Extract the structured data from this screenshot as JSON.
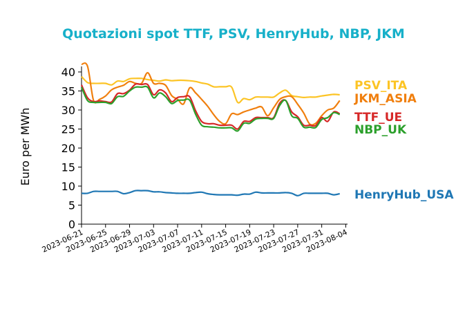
{
  "chart_data": {
    "type": "line",
    "title": "Quotazioni spot TTF, PSV, HenryHub, NBP, JKM",
    "title_color": "#17b0c9",
    "xlabel": "",
    "ylabel": "Euro per MWh",
    "ylim": [
      0,
      42
    ],
    "yticks": [
      0,
      5,
      10,
      15,
      20,
      25,
      30,
      35,
      40
    ],
    "ytick_labels": [
      "0",
      "5",
      "10",
      "15",
      "20",
      "25",
      "30",
      "35",
      "40"
    ],
    "x_start": "2023-06-21",
    "xticks": [
      "2023-06-21",
      "2023-06-25",
      "2023-06-29",
      "2023-07-03",
      "2023-07-07",
      "2023-07-11",
      "2023-07-15",
      "2023-07-19",
      "2023-07-23",
      "2023-07-27",
      "2023-07-31",
      "2023-08-04"
    ],
    "x": [
      "2023-06-21",
      "2023-06-22",
      "2023-06-23",
      "2023-06-24",
      "2023-06-25",
      "2023-06-26",
      "2023-06-27",
      "2023-06-28",
      "2023-06-29",
      "2023-06-30",
      "2023-07-01",
      "2023-07-02",
      "2023-07-03",
      "2023-07-04",
      "2023-07-05",
      "2023-07-06",
      "2023-07-07",
      "2023-07-08",
      "2023-07-09",
      "2023-07-10",
      "2023-07-11",
      "2023-07-12",
      "2023-07-13",
      "2023-07-14",
      "2023-07-15",
      "2023-07-16",
      "2023-07-17",
      "2023-07-18",
      "2023-07-19",
      "2023-07-20",
      "2023-07-21",
      "2023-07-22",
      "2023-07-23",
      "2023-07-24",
      "2023-07-25",
      "2023-07-26",
      "2023-07-27",
      "2023-07-28",
      "2023-07-29",
      "2023-07-30",
      "2023-07-31",
      "2023-08-01",
      "2023-08-02",
      "2023-08-03"
    ],
    "grid": false,
    "legend": "end-of-line labels",
    "series": [
      {
        "name": "PSV_ITA",
        "color": "#fcc425",
        "values": [
          38.8,
          37.2,
          37.0,
          37.0,
          37.0,
          36.6,
          37.6,
          37.5,
          38.2,
          38.3,
          38.3,
          38.0,
          37.8,
          37.6,
          37.9,
          37.7,
          37.8,
          37.8,
          37.7,
          37.5,
          37.1,
          36.8,
          36.1,
          36.1,
          36.1,
          36.0,
          32.0,
          33.0,
          32.7,
          33.4,
          33.4,
          33.4,
          33.4,
          34.5,
          35.2,
          33.8,
          33.5,
          33.3,
          33.4,
          33.4,
          33.7,
          33.9,
          34.1,
          34.0
        ]
      },
      {
        "name": "JKM_ASIA",
        "color": "#f07f0e",
        "values": [
          42.0,
          41.5,
          32.5,
          32.8,
          33.7,
          35.3,
          36.0,
          36.5,
          37.5,
          37.0,
          37.0,
          39.8,
          37.0,
          37.0,
          36.5,
          33.8,
          32.8,
          31.6,
          35.8,
          34.5,
          32.8,
          31.0,
          28.8,
          27.0,
          26.4,
          29.0,
          28.8,
          29.5,
          30.0,
          30.5,
          30.8,
          28.5,
          30.6,
          32.8,
          33.5,
          33.5,
          31.5,
          29.2,
          26.3,
          26.5,
          28.5,
          30.0,
          30.5,
          32.5
        ]
      },
      {
        "name": "TTF_UE",
        "color": "#d62727",
        "values": [
          36.6,
          33.2,
          32.2,
          32.4,
          32.2,
          32.1,
          34.3,
          34.3,
          35.2,
          36.8,
          36.7,
          36.7,
          34.0,
          35.3,
          34.5,
          32.2,
          33.3,
          33.5,
          33.5,
          29.8,
          27.0,
          26.4,
          26.4,
          26.0,
          26.0,
          26.0,
          25.0,
          27.0,
          27.0,
          28.0,
          28.0,
          28.0,
          28.0,
          31.8,
          32.5,
          29.5,
          28.2,
          26.0,
          26.0,
          25.9,
          28.0,
          27.0,
          29.5,
          29.0
        ]
      },
      {
        "name": "NBP_UK",
        "color": "#2ca02c",
        "values": [
          36.0,
          32.5,
          32.0,
          32.0,
          32.0,
          31.7,
          33.5,
          33.6,
          35.0,
          36.0,
          36.0,
          36.0,
          33.2,
          34.5,
          33.5,
          31.7,
          32.5,
          32.6,
          32.6,
          28.9,
          26.0,
          25.6,
          25.5,
          25.3,
          25.3,
          25.3,
          24.5,
          26.5,
          26.5,
          27.6,
          27.8,
          27.8,
          27.8,
          31.2,
          32.5,
          28.5,
          27.8,
          25.5,
          25.5,
          25.4,
          27.5,
          28.0,
          29.3,
          28.8
        ]
      },
      {
        "name": "HenryHub_USA",
        "color": "#1f77b4",
        "values": [
          8.1,
          8.1,
          8.6,
          8.6,
          8.6,
          8.6,
          8.6,
          8.0,
          8.3,
          8.8,
          8.8,
          8.8,
          8.5,
          8.5,
          8.3,
          8.2,
          8.1,
          8.1,
          8.1,
          8.3,
          8.4,
          8.0,
          7.8,
          7.7,
          7.7,
          7.7,
          7.6,
          7.9,
          7.9,
          8.4,
          8.2,
          8.2,
          8.2,
          8.2,
          8.3,
          8.1,
          7.5,
          8.1,
          8.1,
          8.1,
          8.1,
          8.1,
          7.7,
          8.0
        ]
      }
    ]
  }
}
